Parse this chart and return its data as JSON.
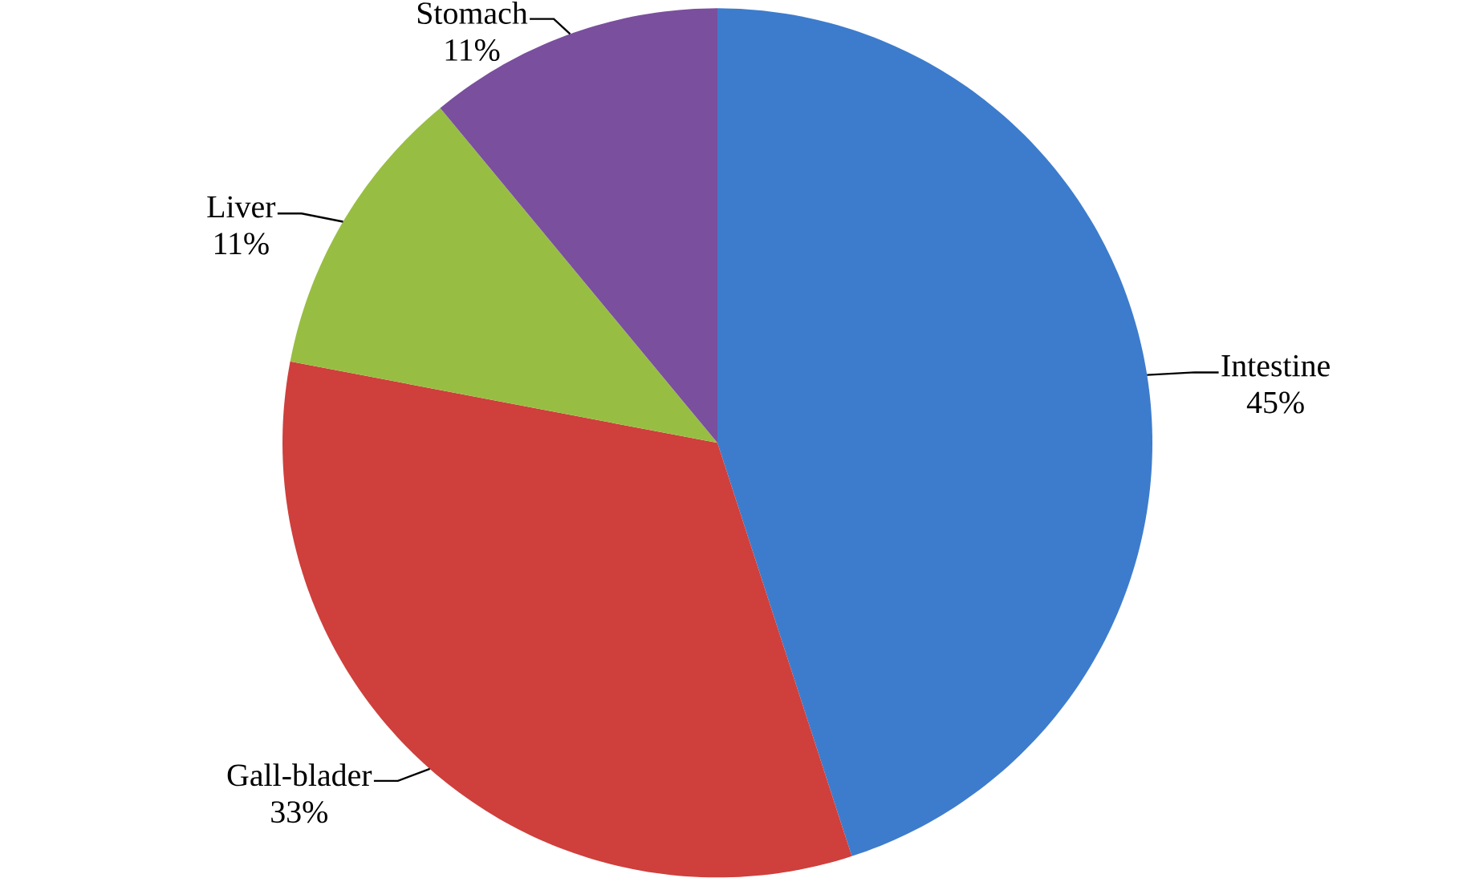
{
  "chart_data": {
    "type": "pie",
    "categories": [
      "Intestine",
      "Gall-blader",
      "Liver",
      "Stomach"
    ],
    "values": [
      45,
      33,
      11,
      11
    ],
    "value_labels": [
      "45%",
      "33%",
      "11%",
      "11%"
    ],
    "colors": [
      "#3d7ccc",
      "#cf3f3c",
      "#97be42",
      "#7a4f9e"
    ]
  }
}
